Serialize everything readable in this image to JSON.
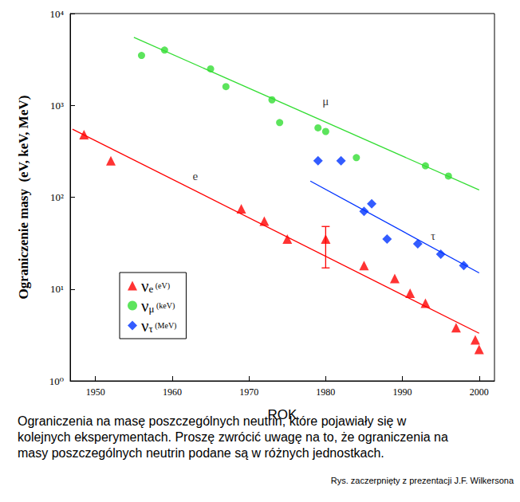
{
  "chart_data": {
    "type": "scatter",
    "x_label": "ROK",
    "y_label": "Ograniczenie masy  (eV, keV, MeV)",
    "log": "y",
    "grid": false,
    "legend": "lower left",
    "xlim": [
      1946.7,
      2002
    ],
    "xticks": [
      1950,
      1960,
      1970,
      1980,
      1990,
      2000
    ],
    "ylim": [
      1,
      10000
    ],
    "yticks": [
      {
        "value": 1,
        "label": "10⁰"
      },
      {
        "value": 10,
        "label": "10¹"
      },
      {
        "value": 100,
        "label": "10²"
      },
      {
        "value": 1000,
        "label": "10³"
      },
      {
        "value": 10000,
        "label": "10⁴"
      }
    ],
    "series": [
      {
        "name": "νe (eV)",
        "color": "#ff0000",
        "marker": "triangle",
        "line_style": "solid",
        "x": [
          1948.5,
          1952,
          1969,
          1972,
          1975,
          1980,
          1985,
          1989,
          1991,
          1993,
          1997,
          1999.5,
          2000
        ],
        "values": [
          480,
          250,
          75,
          55,
          35,
          35,
          18,
          13,
          9,
          7,
          3.8,
          2.8,
          2.2
        ],
        "yerr": [
          null,
          null,
          null,
          null,
          null,
          [
            17,
            48
          ],
          null,
          null,
          null,
          null,
          null,
          null,
          null
        ],
        "fit": {
          "x": [
            1947,
            2000
          ],
          "values": [
            550,
            3.3
          ]
        }
      },
      {
        "name": "νμ (keV)",
        "color": "#33dd33",
        "marker": "circle",
        "line_style": "solid",
        "x": [
          1956,
          1959,
          1965,
          1967,
          1973,
          1974,
          1979,
          1980,
          1984,
          1993,
          1996
        ],
        "values": [
          3500,
          4000,
          2500,
          1600,
          1150,
          650,
          570,
          520,
          270,
          220,
          170
        ],
        "fit": {
          "x": [
            1955,
            2000
          ],
          "values": [
            5500,
            120
          ]
        }
      },
      {
        "name": "ντ (MeV)",
        "color": "#0033ff",
        "marker": "diamond",
        "line_style": "solid",
        "x": [
          1979,
          1982,
          1985,
          1986,
          1988,
          1992,
          1995,
          1998
        ],
        "values": [
          250,
          250,
          70,
          85,
          35,
          31,
          24,
          18
        ],
        "fit": {
          "x": [
            1978,
            2000
          ],
          "values": [
            150,
            15
          ]
        }
      }
    ],
    "annotations": [
      {
        "text": "e",
        "x": 1963,
        "y": 170
      },
      {
        "text": "μ",
        "x": 1980,
        "y": 1100
      },
      {
        "text": "τ",
        "x": 1994,
        "y": 38
      }
    ],
    "caption": "Ograniczenia na masę poszczególnych neutrin, które pojawiały się w kolejnych eksperymentach. Proszę zwrócić uwagę na to, że ograniczenia na masy poszczególnych neutrin podane są w różnych jednostkach.",
    "source": "Rys. zaczerpnięty z prezentacji J.F. Wilkersona"
  }
}
